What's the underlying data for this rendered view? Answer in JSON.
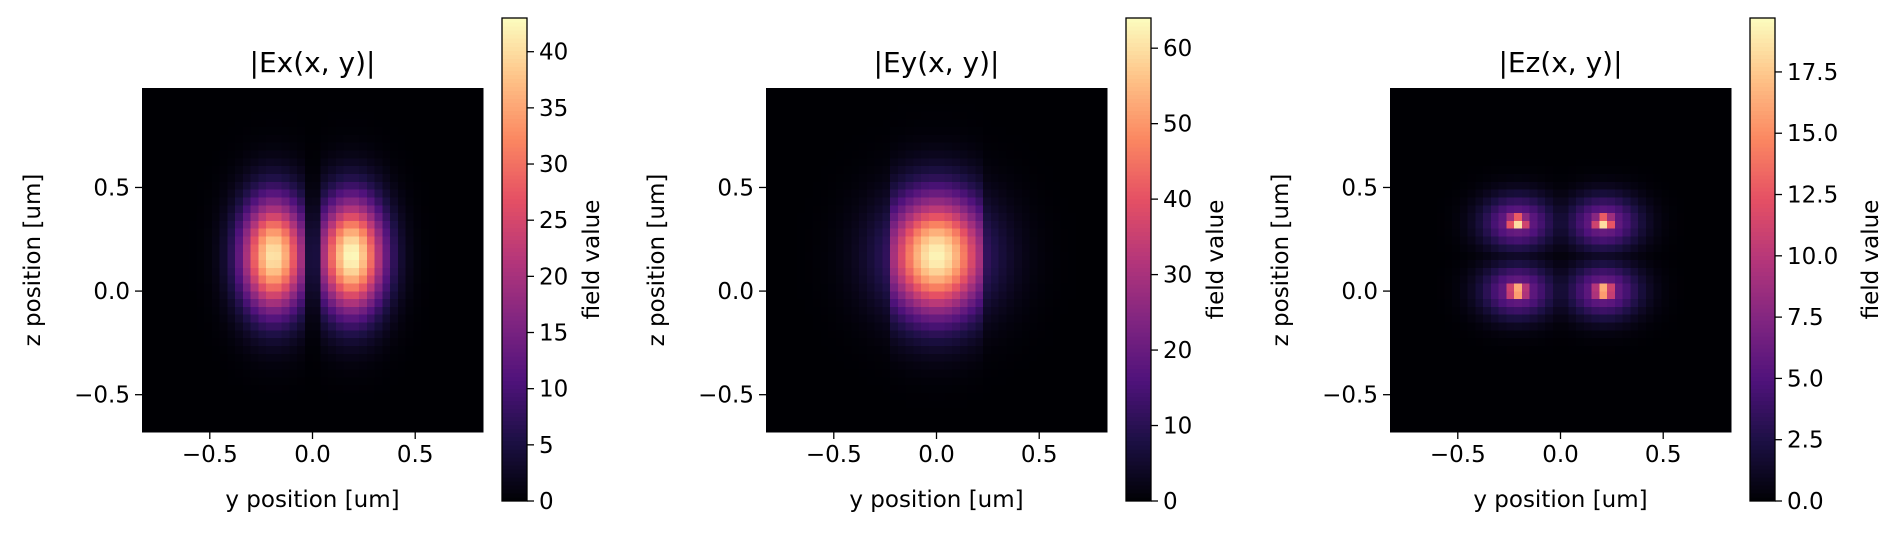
{
  "chart_data": [
    {
      "type": "heatmap",
      "title": "|Ex(x, y)|",
      "xlabel": "y position [um]",
      "ylabel": "z position [um]",
      "colorbar_label": "field value",
      "colormap": "magma",
      "xlim": [
        -0.83,
        0.83
      ],
      "ylim": [
        -0.68,
        0.98
      ],
      "xticks": [
        "-0.5",
        "0.0",
        "0.5"
      ],
      "yticks": [
        "-0.5",
        "0.0",
        "0.5"
      ],
      "xtick_values": [
        -0.5,
        0.0,
        0.5
      ],
      "ytick_values": [
        -0.5,
        0.0,
        0.5
      ],
      "colorbar_range": [
        0,
        43
      ],
      "colorbar_ticks": [
        "0",
        "5",
        "10",
        "15",
        "20",
        "25",
        "30",
        "35",
        "40"
      ],
      "colorbar_tick_values": [
        0,
        5,
        10,
        15,
        20,
        25,
        30,
        35,
        40
      ],
      "features": [
        {
          "shape": "lobe",
          "y": -0.19,
          "z": 0.17,
          "peak": 41,
          "width_y": 0.11,
          "width_z": 0.19
        },
        {
          "shape": "lobe",
          "y": 0.19,
          "z": 0.17,
          "peak": 43,
          "width_y": 0.11,
          "width_z": 0.19
        }
      ]
    },
    {
      "type": "heatmap",
      "title": "|Ey(x, y)|",
      "xlabel": "y position [um]",
      "ylabel": "z position [um]",
      "colorbar_label": "field value",
      "colormap": "magma",
      "xlim": [
        -0.83,
        0.83
      ],
      "ylim": [
        -0.68,
        0.98
      ],
      "xticks": [
        "-0.5",
        "0.0",
        "0.5"
      ],
      "yticks": [
        "-0.5",
        "0.0",
        "0.5"
      ],
      "xtick_values": [
        -0.5,
        0.0,
        0.5
      ],
      "ytick_values": [
        -0.5,
        0.0,
        0.5
      ],
      "colorbar_range": [
        0,
        64
      ],
      "colorbar_ticks": [
        "0",
        "10",
        "20",
        "30",
        "40",
        "50",
        "60"
      ],
      "colorbar_tick_values": [
        0,
        10,
        20,
        30,
        40,
        50,
        60
      ],
      "features": [
        {
          "shape": "core",
          "y": 0.0,
          "z": 0.17,
          "peak": 63,
          "width_y": 0.17,
          "width_z": 0.2,
          "inside_halfwidth": 0.21
        },
        {
          "shape": "outer",
          "y": 0.0,
          "z": 0.17,
          "peak": 24,
          "width_y": 0.2,
          "width_z": 0.2,
          "inside_halfwidth": 0.23
        }
      ]
    },
    {
      "type": "heatmap",
      "title": "|Ez(x, y)|",
      "xlabel": "y position [um]",
      "ylabel": "z position [um]",
      "colorbar_label": "field value",
      "colormap": "magma",
      "xlim": [
        -0.83,
        0.83
      ],
      "ylim": [
        -0.68,
        0.98
      ],
      "xticks": [
        "-0.5",
        "0.0",
        "0.5"
      ],
      "yticks": [
        "-0.5",
        "0.0",
        "0.5"
      ],
      "xtick_values": [
        -0.5,
        0.0,
        0.5
      ],
      "ytick_values": [
        -0.5,
        0.0,
        0.5
      ],
      "colorbar_range": [
        0,
        19.7
      ],
      "colorbar_ticks": [
        "0.0",
        "2.5",
        "5.0",
        "7.5",
        "10.0",
        "12.5",
        "15.0",
        "17.5"
      ],
      "colorbar_tick_values": [
        0,
        2.5,
        5.0,
        7.5,
        10.0,
        12.5,
        15.0,
        17.5
      ],
      "features": [
        {
          "shape": "corner",
          "y": -0.21,
          "z": 0.33,
          "peak": 19.5,
          "width_y": 0.04,
          "width_z": 0.03
        },
        {
          "shape": "corner",
          "y": 0.21,
          "z": 0.33,
          "peak": 19.5,
          "width_y": 0.04,
          "width_z": 0.03
        },
        {
          "shape": "corner",
          "y": -0.21,
          "z": 0.0,
          "peak": 19.5,
          "width_y": 0.04,
          "width_z": 0.03
        },
        {
          "shape": "corner",
          "y": 0.21,
          "z": 0.0,
          "peak": 19.5,
          "width_y": 0.04,
          "width_z": 0.03
        },
        {
          "shape": "halo",
          "y": -0.21,
          "z": 0.33,
          "peak": 7,
          "width_y": 0.12,
          "width_z": 0.09
        },
        {
          "shape": "halo",
          "y": 0.21,
          "z": 0.33,
          "peak": 7,
          "width_y": 0.12,
          "width_z": 0.09
        },
        {
          "shape": "halo",
          "y": -0.21,
          "z": 0.0,
          "peak": 7,
          "width_y": 0.12,
          "width_z": 0.09
        },
        {
          "shape": "halo",
          "y": 0.21,
          "z": 0.0,
          "peak": 7,
          "width_y": 0.12,
          "width_z": 0.09
        }
      ]
    }
  ]
}
